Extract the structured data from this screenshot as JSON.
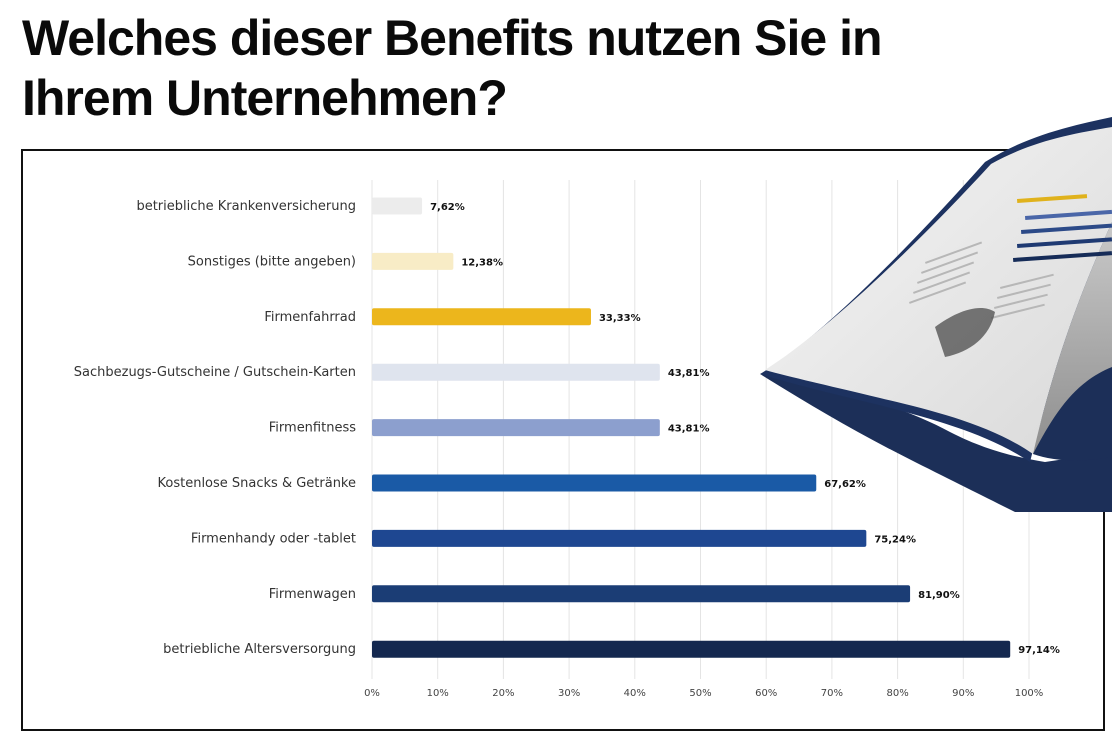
{
  "page": {
    "title": "Welches dieser Benefits nutzen Sie in Ihrem Unternehmen?"
  },
  "chart_data": {
    "type": "bar",
    "orientation": "horizontal",
    "categories": [
      "betriebliche Krankenversicherung",
      "Sonstiges (bitte angeben)",
      "Firmenfahrrad",
      "Sachbezugs-Gutscheine / Gutschein-Karten",
      "Firmenfitness",
      "Kostenlose Snacks & Getränke",
      "Firmenhandy oder -tablet",
      "Firmenwagen",
      "betriebliche Altersversorgung"
    ],
    "values": [
      7.62,
      12.38,
      33.33,
      43.81,
      43.81,
      67.62,
      75.24,
      81.9,
      97.14
    ],
    "value_labels": [
      "7,62%",
      "12,38%",
      "33,33%",
      "43,81%",
      "43,81%",
      "67,62%",
      "75,24%",
      "81,90%",
      "97,14%"
    ],
    "bar_colors": [
      "#ececec",
      "#f8ecc6",
      "#ecb61c",
      "#dfe4ee",
      "#8c9fce",
      "#1a5aa6",
      "#1e4791",
      "#1b3d75",
      "#14284f"
    ],
    "xlim": [
      0,
      100
    ],
    "x_ticks": [
      "0%",
      "10%",
      "20%",
      "30%",
      "40%",
      "50%",
      "60%",
      "70%",
      "80%",
      "90%",
      "100%"
    ],
    "grid": true,
    "xlabel": "",
    "ylabel": ""
  }
}
